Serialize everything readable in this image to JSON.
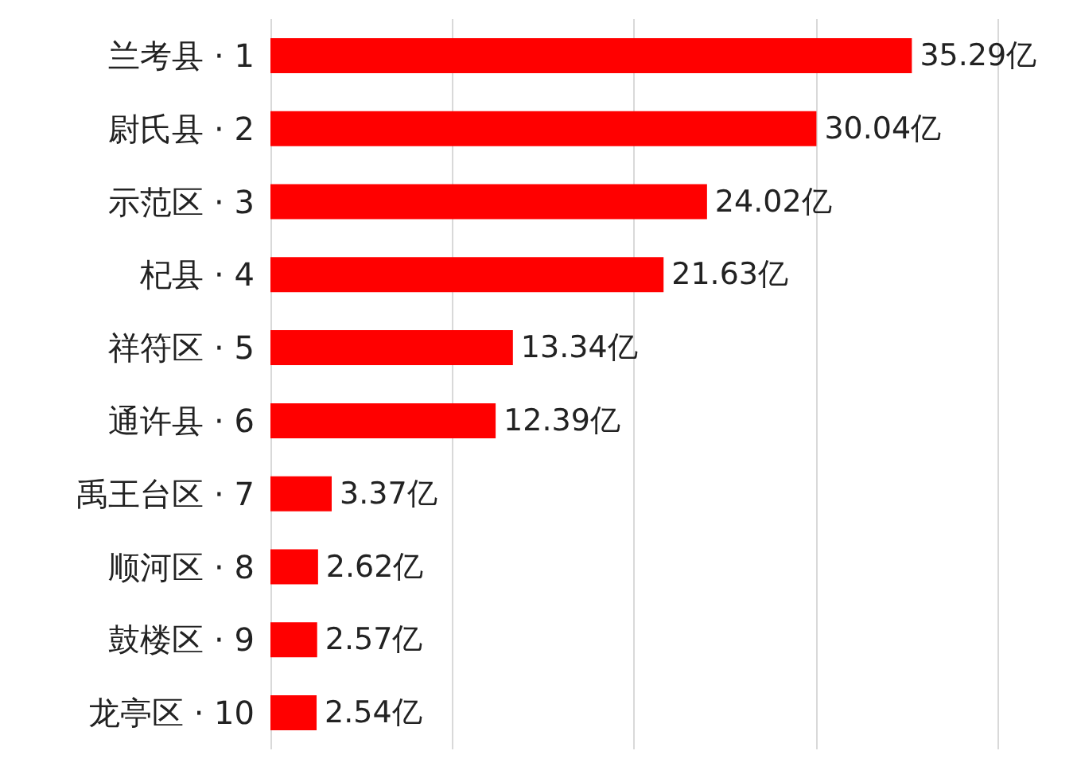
{
  "chart_data": {
    "type": "bar",
    "orientation": "horizontal",
    "categories": [
      "兰考县 · 1",
      "尉氏县 · 2",
      "示范区 · 3",
      "杞县 · 4",
      "祥符区 · 5",
      "通许县 · 6",
      "禹王台区 · 7",
      "顺河区 · 8",
      "鼓楼区 · 9",
      "龙亭区 · 10"
    ],
    "values": [
      35.29,
      30.04,
      24.02,
      21.63,
      13.34,
      12.39,
      3.37,
      2.62,
      2.57,
      2.54
    ],
    "value_labels": [
      "35.29亿",
      "30.04亿",
      "24.02亿",
      "21.63亿",
      "13.34亿",
      "12.39亿",
      "3.37亿",
      "2.62亿",
      "2.57亿",
      "2.54亿"
    ],
    "color": "#ff0000",
    "xlim": [
      0,
      40
    ],
    "xticks": [
      {
        "value": 0,
        "label": null
      },
      {
        "value": 10,
        "label": null
      },
      {
        "value": 20,
        "label": null
      },
      {
        "value": 30,
        "label": null
      },
      {
        "value": 40,
        "label": null
      }
    ],
    "grid": "x",
    "tick_labels": "y"
  }
}
